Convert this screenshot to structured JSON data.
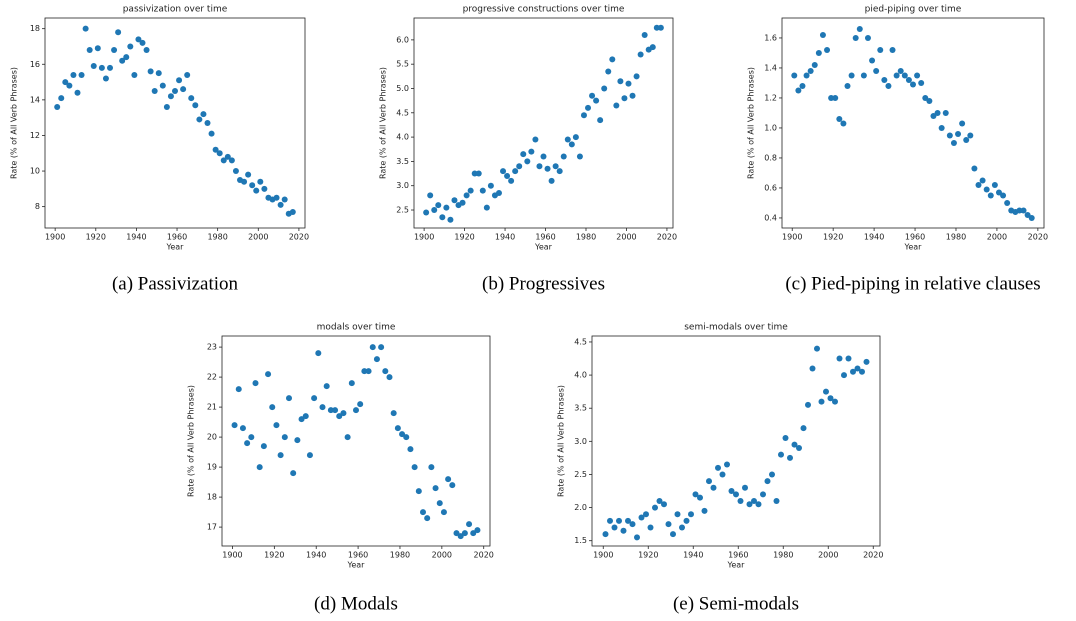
{
  "chart_data": [
    {
      "type": "scatter",
      "title": "passivization over time",
      "xlabel": "Year",
      "ylabel": "Rate (% of All Verb Phrases)",
      "caption": "(a) Passivization",
      "color": "#1f77b4",
      "xlim": [
        1895,
        2023
      ],
      "xticks": [
        1900,
        1920,
        1940,
        1960,
        1980,
        2000,
        2020
      ],
      "ylim": [
        6.8,
        18.6
      ],
      "yticks": [
        8,
        10,
        12,
        14,
        16,
        18
      ],
      "x": [
        1901,
        1903,
        1905,
        1907,
        1909,
        1911,
        1913,
        1915,
        1917,
        1919,
        1921,
        1923,
        1925,
        1927,
        1929,
        1931,
        1933,
        1935,
        1937,
        1939,
        1941,
        1943,
        1945,
        1947,
        1949,
        1951,
        1953,
        1955,
        1957,
        1959,
        1961,
        1963,
        1965,
        1967,
        1969,
        1971,
        1973,
        1975,
        1977,
        1979,
        1981,
        1983,
        1985,
        1987,
        1989,
        1991,
        1993,
        1995,
        1997,
        1999,
        2001,
        2003,
        2005,
        2007,
        2009,
        2011,
        2013,
        2015,
        2017
      ],
      "values": [
        13.6,
        14.1,
        15.0,
        14.8,
        15.4,
        14.4,
        15.4,
        18.0,
        16.8,
        15.9,
        16.9,
        15.8,
        15.2,
        15.8,
        16.8,
        17.8,
        16.2,
        16.4,
        17.0,
        15.4,
        17.4,
        17.2,
        16.8,
        15.6,
        14.5,
        15.5,
        14.8,
        13.6,
        14.2,
        14.5,
        15.1,
        14.6,
        15.4,
        14.1,
        13.7,
        12.9,
        13.2,
        12.7,
        12.1,
        11.2,
        11.0,
        10.6,
        10.8,
        10.6,
        10.0,
        9.5,
        9.4,
        9.8,
        9.2,
        8.9,
        9.4,
        9.0,
        8.5,
        8.4,
        8.5,
        8.1,
        8.4,
        7.6,
        7.7
      ]
    },
    {
      "type": "scatter",
      "title": "progressive constructions over time",
      "xlabel": "Year",
      "ylabel": "Rate (% of All Verb Phrases)",
      "caption": "(b) Progressives",
      "color": "#1f77b4",
      "xlim": [
        1895,
        2023
      ],
      "xticks": [
        1900,
        1920,
        1940,
        1960,
        1980,
        2000,
        2020
      ],
      "ylim": [
        2.13,
        6.45
      ],
      "yticks": [
        2.5,
        {
          "value": 3,
          "label": "3.0"
        },
        3.5,
        {
          "value": 4,
          "label": "4.0"
        },
        4.5,
        {
          "value": 5,
          "label": "5.0"
        },
        5.5,
        {
          "value": 6,
          "label": "6.0"
        }
      ],
      "x": [
        1901,
        1903,
        1905,
        1907,
        1909,
        1911,
        1913,
        1915,
        1917,
        1919,
        1921,
        1923,
        1925,
        1927,
        1929,
        1931,
        1933,
        1935,
        1937,
        1939,
        1941,
        1943,
        1945,
        1947,
        1949,
        1951,
        1953,
        1955,
        1957,
        1959,
        1961,
        1963,
        1965,
        1967,
        1969,
        1971,
        1973,
        1975,
        1977,
        1979,
        1981,
        1983,
        1985,
        1987,
        1989,
        1991,
        1993,
        1995,
        1997,
        1999,
        2001,
        2003,
        2005,
        2007,
        2009,
        2011,
        2013,
        2015,
        2017
      ],
      "values": [
        2.45,
        2.8,
        2.5,
        2.6,
        2.35,
        2.55,
        2.3,
        2.7,
        2.6,
        2.65,
        2.8,
        2.9,
        3.25,
        3.25,
        2.9,
        2.55,
        3.0,
        2.8,
        2.85,
        3.3,
        3.2,
        3.1,
        3.3,
        3.4,
        3.65,
        3.5,
        3.7,
        3.95,
        3.4,
        3.6,
        3.35,
        3.1,
        3.4,
        3.3,
        3.6,
        3.95,
        3.85,
        4.0,
        3.6,
        4.45,
        4.6,
        4.85,
        4.75,
        4.35,
        5.0,
        5.35,
        5.6,
        4.65,
        5.15,
        4.8,
        5.1,
        4.85,
        5.25,
        5.7,
        6.1,
        5.8,
        5.85,
        6.25,
        6.25
      ]
    },
    {
      "type": "scatter",
      "title": "pied-piping over time",
      "xlabel": "Year",
      "ylabel": "Rate (% of All Verb Phrases)",
      "caption": "(c) Pied-piping in relative clauses",
      "color": "#1f77b4",
      "xlim": [
        1895,
        2023
      ],
      "xticks": [
        1900,
        1920,
        1940,
        1960,
        1980,
        2000,
        2020
      ],
      "ylim": [
        0.333,
        1.733
      ],
      "yticks": [
        0.4,
        0.6,
        0.8,
        {
          "value": 1,
          "label": "1.0"
        },
        1.2,
        1.4,
        1.6
      ],
      "x": [
        1901,
        1903,
        1905,
        1907,
        1909,
        1911,
        1913,
        1915,
        1917,
        1919,
        1921,
        1923,
        1925,
        1927,
        1929,
        1931,
        1933,
        1935,
        1937,
        1939,
        1941,
        1943,
        1945,
        1947,
        1949,
        1951,
        1953,
        1955,
        1957,
        1959,
        1961,
        1963,
        1965,
        1967,
        1969,
        1971,
        1973,
        1975,
        1977,
        1979,
        1981,
        1983,
        1985,
        1987,
        1989,
        1991,
        1993,
        1995,
        1997,
        1999,
        2001,
        2003,
        2005,
        2007,
        2009,
        2011,
        2013,
        2015,
        2017
      ],
      "values": [
        1.35,
        1.25,
        1.28,
        1.35,
        1.38,
        1.42,
        1.5,
        1.62,
        1.52,
        1.2,
        1.2,
        1.06,
        1.03,
        1.28,
        1.35,
        1.6,
        1.66,
        1.35,
        1.6,
        1.45,
        1.38,
        1.52,
        1.32,
        1.28,
        1.52,
        1.35,
        1.38,
        1.35,
        1.32,
        1.29,
        1.35,
        1.3,
        1.2,
        1.18,
        1.08,
        1.1,
        1.0,
        1.1,
        0.95,
        0.9,
        0.96,
        1.03,
        0.92,
        0.95,
        0.73,
        0.62,
        0.65,
        0.59,
        0.55,
        0.62,
        0.57,
        0.55,
        0.5,
        0.45,
        0.44,
        0.45,
        0.45,
        0.42,
        0.4
      ]
    },
    {
      "type": "scatter",
      "title": "modals over time",
      "xlabel": "Year",
      "ylabel": "Rate (% of All Verb Phrases)",
      "caption": "(d) Modals",
      "color": "#1f77b4",
      "xlim": [
        1895,
        2023
      ],
      "xticks": [
        1900,
        1920,
        1940,
        1960,
        1980,
        2000,
        2020
      ],
      "ylim": [
        16.37,
        23.37
      ],
      "yticks": [
        17,
        18,
        19,
        20,
        21,
        22,
        23
      ],
      "x": [
        1901,
        1903,
        1905,
        1907,
        1909,
        1911,
        1913,
        1915,
        1917,
        1919,
        1921,
        1923,
        1925,
        1927,
        1929,
        1931,
        1933,
        1935,
        1937,
        1939,
        1941,
        1943,
        1945,
        1947,
        1949,
        1951,
        1953,
        1955,
        1957,
        1959,
        1961,
        1963,
        1965,
        1967,
        1969,
        1971,
        1973,
        1975,
        1977,
        1979,
        1981,
        1983,
        1985,
        1987,
        1989,
        1991,
        1993,
        1995,
        1997,
        1999,
        2001,
        2003,
        2005,
        2007,
        2009,
        2011,
        2013,
        2015,
        2017
      ],
      "values": [
        20.4,
        21.6,
        20.3,
        19.8,
        20.0,
        21.8,
        19.0,
        19.7,
        22.1,
        21.0,
        20.4,
        19.4,
        20.0,
        21.3,
        18.8,
        19.9,
        20.6,
        20.7,
        19.4,
        21.3,
        22.8,
        21.0,
        21.7,
        20.9,
        20.9,
        20.7,
        20.8,
        20.0,
        21.8,
        20.9,
        21.1,
        22.2,
        22.2,
        23.0,
        22.6,
        23.0,
        22.2,
        22.0,
        20.8,
        20.3,
        20.1,
        20.0,
        19.6,
        19.0,
        18.2,
        17.5,
        17.3,
        19.0,
        18.3,
        17.8,
        17.5,
        18.6,
        18.4,
        16.8,
        16.7,
        16.8,
        17.1,
        16.8,
        16.9
      ]
    },
    {
      "type": "scatter",
      "title": "semi-modals over time",
      "xlabel": "Year",
      "ylabel": "Rate (% of All Verb Phrases)",
      "caption": "(e) Semi-modals",
      "color": "#1f77b4",
      "xlim": [
        1895,
        2023
      ],
      "xticks": [
        1900,
        1920,
        1940,
        1960,
        1980,
        2000,
        2020
      ],
      "ylim": [
        1.42,
        4.59
      ],
      "yticks": [
        1.5,
        {
          "value": 2,
          "label": "2.0"
        },
        2.5,
        {
          "value": 3,
          "label": "3.0"
        },
        3.5,
        {
          "value": 4,
          "label": "4.0"
        },
        4.5
      ],
      "x": [
        1901,
        1903,
        1905,
        1907,
        1909,
        1911,
        1913,
        1915,
        1917,
        1919,
        1921,
        1923,
        1925,
        1927,
        1929,
        1931,
        1933,
        1935,
        1937,
        1939,
        1941,
        1943,
        1945,
        1947,
        1949,
        1951,
        1953,
        1955,
        1957,
        1959,
        1961,
        1963,
        1965,
        1967,
        1969,
        1971,
        1973,
        1975,
        1977,
        1979,
        1981,
        1983,
        1985,
        1987,
        1989,
        1991,
        1993,
        1995,
        1997,
        1999,
        2001,
        2003,
        2005,
        2007,
        2009,
        2011,
        2013,
        2015,
        2017
      ],
      "values": [
        1.6,
        1.8,
        1.7,
        1.8,
        1.65,
        1.8,
        1.75,
        1.55,
        1.85,
        1.9,
        1.7,
        2.0,
        2.1,
        2.05,
        1.75,
        1.6,
        1.9,
        1.7,
        1.8,
        1.9,
        2.2,
        2.15,
        1.95,
        2.4,
        2.3,
        2.6,
        2.5,
        2.65,
        2.25,
        2.2,
        2.1,
        2.3,
        2.05,
        2.1,
        2.05,
        2.2,
        2.4,
        2.5,
        2.1,
        2.8,
        3.05,
        2.75,
        2.95,
        2.9,
        3.2,
        3.55,
        4.1,
        4.4,
        3.6,
        3.75,
        3.65,
        3.6,
        4.25,
        4.0,
        4.25,
        4.05,
        4.1,
        4.05,
        4.2
      ]
    }
  ]
}
